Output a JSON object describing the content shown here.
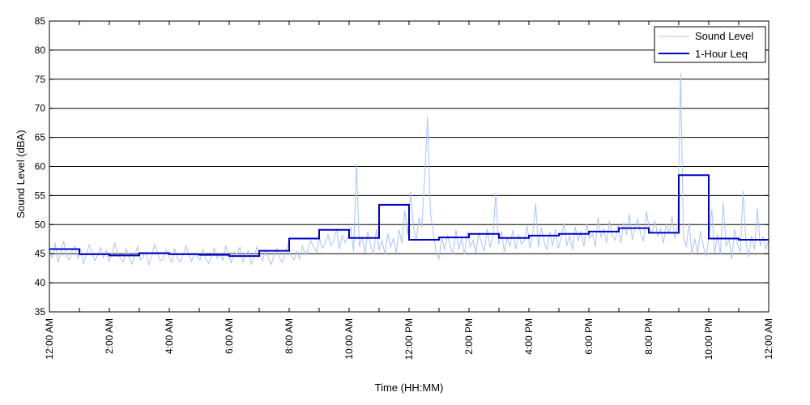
{
  "chart_data": {
    "type": "line",
    "xlabel": "Time (HH:MM)",
    "ylabel": "Sound Level (dBA)",
    "ylim": [
      35,
      85
    ],
    "y_ticks": [
      35,
      40,
      45,
      50,
      55,
      60,
      65,
      70,
      75,
      80,
      85
    ],
    "x_hours_range": [
      0,
      24
    ],
    "x_tick_hours": [
      0,
      2,
      4,
      6,
      8,
      10,
      12,
      14,
      16,
      18,
      20,
      22,
      24
    ],
    "x_tick_labels": [
      "12:00 AM",
      "2:00 AM",
      "4:00 AM",
      "6:00 AM",
      "8:00 AM",
      "10:00 AM",
      "12:00 PM",
      "2:00 PM",
      "4:00 PM",
      "6:00 PM",
      "8:00 PM",
      "10:00 PM",
      "12:00 AM"
    ],
    "grid": true,
    "legend_position": "top-right",
    "series": [
      {
        "name": "Sound Level",
        "color": "#a9c4f5",
        "values": [
          45.8,
          44.2,
          46.9,
          43.5,
          45.1,
          47.2,
          44.6,
          43.9,
          45.5,
          46.3,
          44.1,
          45.8,
          43.2,
          44.9,
          46.5,
          45.2,
          43.8,
          44.7,
          46.1,
          44.3,
          45.6,
          43.7,
          44.9,
          46.8,
          45.1,
          44.2,
          43.6,
          45.9,
          44.4,
          43.2,
          44.8,
          46.2,
          43.9,
          44.5,
          45.3,
          43.1,
          44.7,
          46.6,
          45.2,
          43.8,
          44.1,
          45.7,
          44.6,
          43.5,
          45.9,
          44.2,
          43.6,
          44.8,
          46.3,
          44.9,
          43.7,
          45.2,
          44.5,
          43.9,
          45.8,
          44.1,
          43.3,
          44.6,
          45.9,
          44.2,
          45.1,
          43.8,
          46.4,
          44.7,
          43.5,
          45.3,
          44.9,
          46.1,
          43.6,
          44.8,
          45.5,
          43.2,
          44.4,
          46.2,
          44.9,
          43.8,
          45.6,
          44.3,
          43.1,
          44.7,
          45.9,
          44.2,
          43.5,
          45.1,
          46.8,
          44.6,
          43.9,
          45.4,
          44.1,
          46.3,
          44.8,
          45.9,
          47.2,
          46.1,
          45.3,
          47.6,
          45.9,
          46.8,
          48.2,
          46.4,
          47.1,
          49.3,
          45.8,
          48.1,
          46.9,
          47.8,
          49.6,
          45.3,
          60.5,
          46.2,
          47.9,
          45.1,
          48.8,
          46.3,
          44.8,
          49.2,
          45.6,
          47.3,
          44.9,
          48.5,
          46.1,
          47.6,
          45.2,
          49.1,
          46.8,
          52.4,
          48.3,
          55.6,
          49.8,
          47.1,
          51.2,
          49.6,
          58.3,
          68.5,
          52.1,
          48.7,
          45.3,
          44.1,
          47.9,
          45.6,
          48.2,
          46.3,
          44.8,
          49.1,
          45.7,
          47.6,
          44.9,
          48.8,
          46.2,
          47.3,
          45.1,
          48.6,
          46.9,
          45.4,
          49.3,
          46.1,
          47.8,
          55.4,
          46.6,
          48.9,
          45.3,
          47.7,
          46.2,
          49.1,
          45.8,
          48.3,
          46.7,
          47.2,
          49.8,
          45.9,
          48.4,
          53.6,
          46.2,
          49.5,
          47.1,
          45.6,
          48.8,
          46.3,
          49.2,
          45.9,
          47.8,
          50.3,
          46.4,
          48.1,
          45.7,
          49.6,
          47.2,
          48.9,
          46.3,
          50.1,
          47.6,
          48.4,
          46.1,
          51.2,
          47.8,
          49.3,
          46.9,
          50.6,
          48.1,
          47.3,
          49.9,
          46.8,
          50.4,
          48.2,
          51.8,
          47.4,
          49.6,
          50.9,
          48.3,
          47.1,
          52.3,
          49.2,
          48.6,
          50.7,
          47.9,
          49.4,
          46.8,
          50.2,
          48.5,
          51.4,
          47.6,
          49.8,
          76.1,
          48.2,
          46.1,
          50.3,
          44.9,
          47.6,
          45.2,
          48.9,
          46.3,
          44.5,
          47.8,
          52.6,
          45.1,
          48.3,
          44.8,
          53.9,
          46.2,
          47.5,
          44.1,
          49.2,
          46.6,
          45.3,
          55.8,
          46.9,
          44.4,
          48.1,
          45.7,
          52.8,
          46.3,
          47.9,
          45.8,
          47.2
        ]
      },
      {
        "name": "1-Hour Leq",
        "color": "#0000cc",
        "step_values": [
          45.8,
          44.9,
          44.7,
          45.1,
          44.9,
          44.8,
          44.6,
          45.5,
          47.6,
          49.1,
          47.7,
          53.4,
          47.4,
          47.8,
          48.4,
          47.7,
          48.1,
          48.4,
          48.8,
          49.4,
          48.6,
          58.5,
          47.6,
          47.4
        ]
      }
    ]
  }
}
